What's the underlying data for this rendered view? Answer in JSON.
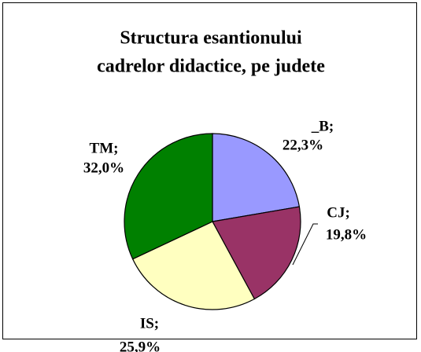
{
  "chart_data": {
    "type": "pie",
    "title": [
      "Structura esantionului",
      "cadrelor didactice, pe judete"
    ],
    "categories": [
      "_B;",
      "CJ;",
      "IS;",
      "TM;"
    ],
    "values": [
      22.3,
      19.8,
      25.9,
      32.0
    ],
    "value_labels": [
      "22,3%",
      "19,8%",
      "25,9%",
      "32,0%"
    ],
    "colors": [
      "#9999ff",
      "#993366",
      "#ffffc0",
      "#008000"
    ]
  }
}
